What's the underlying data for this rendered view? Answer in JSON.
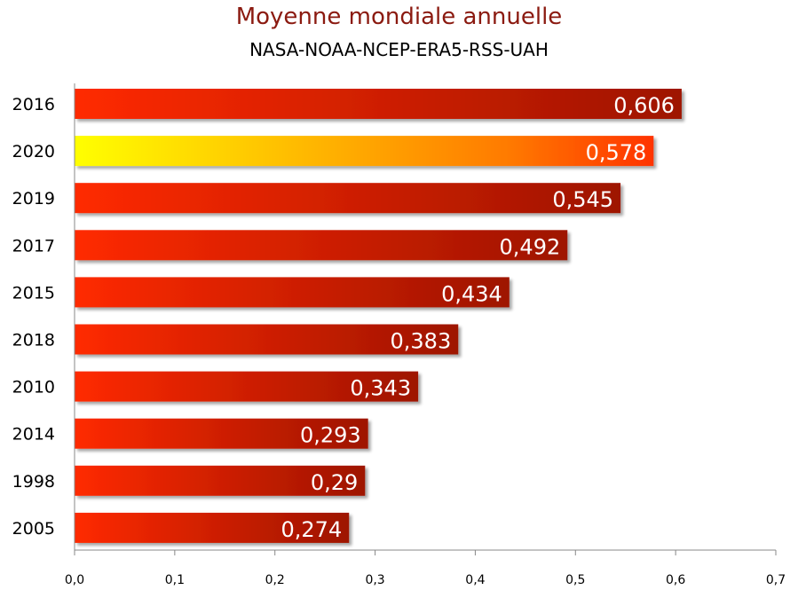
{
  "chart_data": {
    "type": "bar",
    "orientation": "horizontal",
    "title": "Moyenne mondiale annuelle",
    "subtitle": "NASA-NOAA-NCEP-ERA5-RSS-UAH",
    "categories": [
      "2016",
      "2020",
      "2019",
      "2017",
      "2015",
      "2018",
      "2010",
      "2014",
      "1998",
      "2005"
    ],
    "values": [
      0.606,
      0.578,
      0.545,
      0.492,
      0.434,
      0.383,
      0.343,
      0.293,
      0.29,
      0.274
    ],
    "value_labels": [
      "0,606",
      "0,578",
      "0,545",
      "0,492",
      "0,434",
      "0,383",
      "0,343",
      "0,293",
      "0,29",
      "0,274"
    ],
    "highlight_category": "2020",
    "xlim": [
      0,
      0.7
    ],
    "x_ticks": [
      0,
      0.1,
      0.2,
      0.3,
      0.4,
      0.5,
      0.6,
      0.7
    ],
    "x_tick_labels": [
      "0,0",
      "0,1",
      "0,2",
      "0,3",
      "0,4",
      "0,5",
      "0,6",
      "0,7"
    ],
    "grid": false,
    "colors": {
      "bar_start": "#ff2a00",
      "bar_end": "#9e1400",
      "highlight_start": "#ffff00",
      "highlight_end": "#ff3300",
      "title": "#8b1a10",
      "label": "#ffffff"
    }
  }
}
